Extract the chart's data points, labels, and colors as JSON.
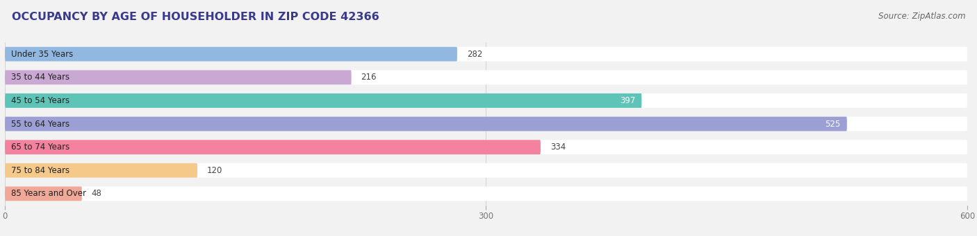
{
  "title": "OCCUPANCY BY AGE OF HOUSEHOLDER IN ZIP CODE 42366",
  "source": "Source: ZipAtlas.com",
  "categories": [
    "Under 35 Years",
    "35 to 44 Years",
    "45 to 54 Years",
    "55 to 64 Years",
    "65 to 74 Years",
    "75 to 84 Years",
    "85 Years and Over"
  ],
  "values": [
    282,
    216,
    397,
    525,
    334,
    120,
    48
  ],
  "bar_colors": [
    "#91b8e0",
    "#c9a8d4",
    "#5ec4b8",
    "#9b9fd4",
    "#f4829e",
    "#f5c98a",
    "#f0a899"
  ],
  "xlim": [
    0,
    600
  ],
  "xticks": [
    0,
    300,
    600
  ],
  "background_color": "#f2f2f2",
  "title_color": "#3a3a8c",
  "title_fontsize": 11.5,
  "source_fontsize": 8.5,
  "label_fontsize": 8.5,
  "value_fontsize": 8.5,
  "bar_height": 0.62,
  "white_value_colors": [
    "#5ec4b8",
    "#9b9fd4"
  ],
  "white_value_indices": [
    2,
    3
  ]
}
